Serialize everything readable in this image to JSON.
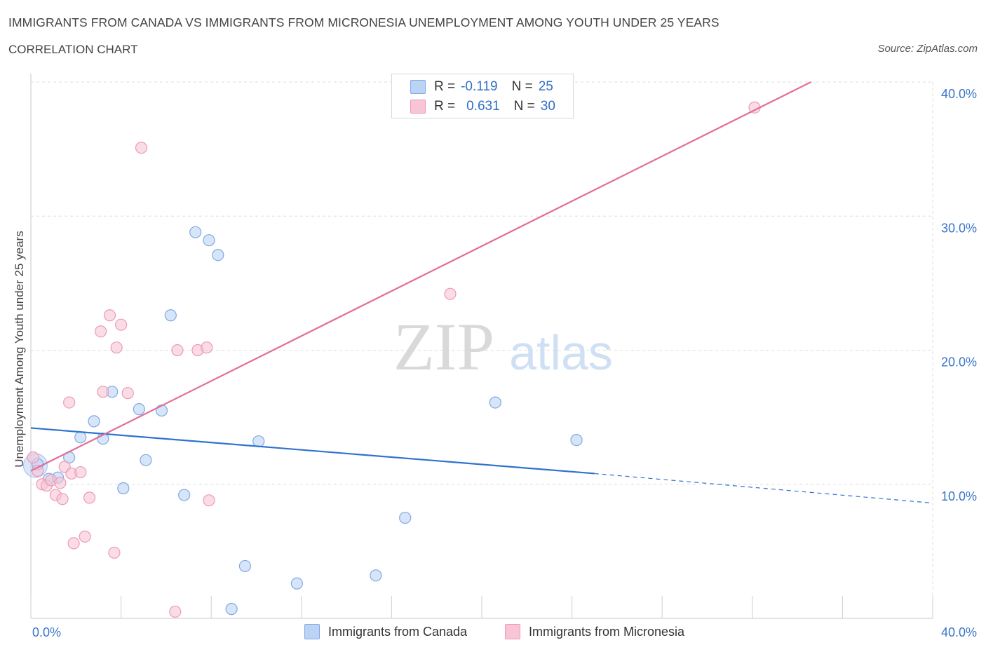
{
  "header": {
    "title": "IMMIGRANTS FROM CANADA VS IMMIGRANTS FROM MICRONESIA UNEMPLOYMENT AMONG YOUTH UNDER 25 YEARS",
    "subtitle": "CORRELATION CHART",
    "source": "Source: ZipAtlas.com"
  },
  "legend": {
    "rows": [
      {
        "r_label": "R =",
        "r_value": "-0.119",
        "n_label": "N =",
        "n_value": "25"
      },
      {
        "r_label": "R =",
        "r_value": "0.631",
        "n_label": "N =",
        "n_value": "30"
      }
    ]
  },
  "colors": {
    "canada": "#7fa9e6",
    "canada_fill": "#bcd3f5",
    "canada_line": "#2f72cf",
    "micronesia": "#ee9ab4",
    "micronesia_fill": "#f7c5d5",
    "micronesia_line": "#e36d95",
    "axis_label": "#3a74c9",
    "grid": "#dcdcdc"
  },
  "watermark": {
    "zip": "ZIP",
    "atlas": "atlas"
  },
  "chart_data": {
    "type": "scatter",
    "title": "IMMIGRANTS FROM CANADA VS IMMIGRANTS FROM MICRONESIA UNEMPLOYMENT AMONG YOUTH UNDER 25 YEARS",
    "xlabel": "",
    "ylabel": "Unemployment Among Youth under 25 years",
    "xlim": [
      0,
      40
    ],
    "ylim": [
      0,
      40
    ],
    "x_tick_labels": [
      "0.0%",
      "40.0%"
    ],
    "y_tick_labels": [
      "10.0%",
      "20.0%",
      "30.0%",
      "40.0%"
    ],
    "y_ticks": [
      10,
      20,
      30,
      40
    ],
    "grid": true,
    "legend_position": "bottom-center",
    "series": [
      {
        "name": "Immigrants from Canada",
        "points": [
          [
            0.3,
            11.5
          ],
          [
            0.8,
            10.4
          ],
          [
            1.2,
            10.5
          ],
          [
            1.7,
            12.0
          ],
          [
            2.2,
            13.5
          ],
          [
            2.8,
            14.7
          ],
          [
            3.2,
            13.4
          ],
          [
            3.6,
            16.9
          ],
          [
            4.1,
            9.7
          ],
          [
            4.8,
            15.6
          ],
          [
            5.1,
            11.8
          ],
          [
            5.8,
            15.5
          ],
          [
            6.2,
            22.6
          ],
          [
            6.8,
            9.2
          ],
          [
            7.3,
            28.8
          ],
          [
            7.9,
            28.2
          ],
          [
            8.3,
            27.1
          ],
          [
            8.9,
            0.7
          ],
          [
            9.5,
            3.9
          ],
          [
            10.1,
            13.2
          ],
          [
            11.8,
            2.6
          ],
          [
            15.3,
            3.2
          ],
          [
            16.6,
            7.5
          ],
          [
            20.6,
            16.1
          ],
          [
            24.2,
            13.3
          ]
        ],
        "trend": {
          "x0": 0,
          "y0": 14.2,
          "x1": 25,
          "y1": 10.8,
          "dash_to_x": 40,
          "dash_to_y": 8.6
        }
      },
      {
        "name": "Immigrants from Micronesia",
        "points": [
          [
            0.1,
            12.0
          ],
          [
            0.3,
            11.0
          ],
          [
            0.5,
            10.0
          ],
          [
            0.7,
            9.9
          ],
          [
            0.9,
            10.3
          ],
          [
            1.1,
            9.2
          ],
          [
            1.3,
            10.1
          ],
          [
            1.4,
            8.9
          ],
          [
            1.5,
            11.3
          ],
          [
            1.7,
            16.1
          ],
          [
            1.8,
            10.8
          ],
          [
            1.9,
            5.6
          ],
          [
            2.2,
            10.9
          ],
          [
            2.4,
            6.1
          ],
          [
            2.6,
            9.0
          ],
          [
            3.1,
            21.4
          ],
          [
            3.2,
            16.9
          ],
          [
            3.5,
            22.6
          ],
          [
            3.7,
            4.9
          ],
          [
            3.8,
            20.2
          ],
          [
            4.0,
            21.9
          ],
          [
            4.3,
            16.8
          ],
          [
            4.9,
            35.1
          ],
          [
            6.4,
            0.5
          ],
          [
            6.5,
            20.0
          ],
          [
            7.4,
            20.0
          ],
          [
            7.8,
            20.2
          ],
          [
            7.9,
            8.8
          ],
          [
            18.6,
            24.2
          ],
          [
            32.1,
            38.1
          ]
        ],
        "trend": {
          "x0": 0,
          "y0": 11.0,
          "x1": 34.6,
          "y1": 40.0
        }
      }
    ]
  }
}
